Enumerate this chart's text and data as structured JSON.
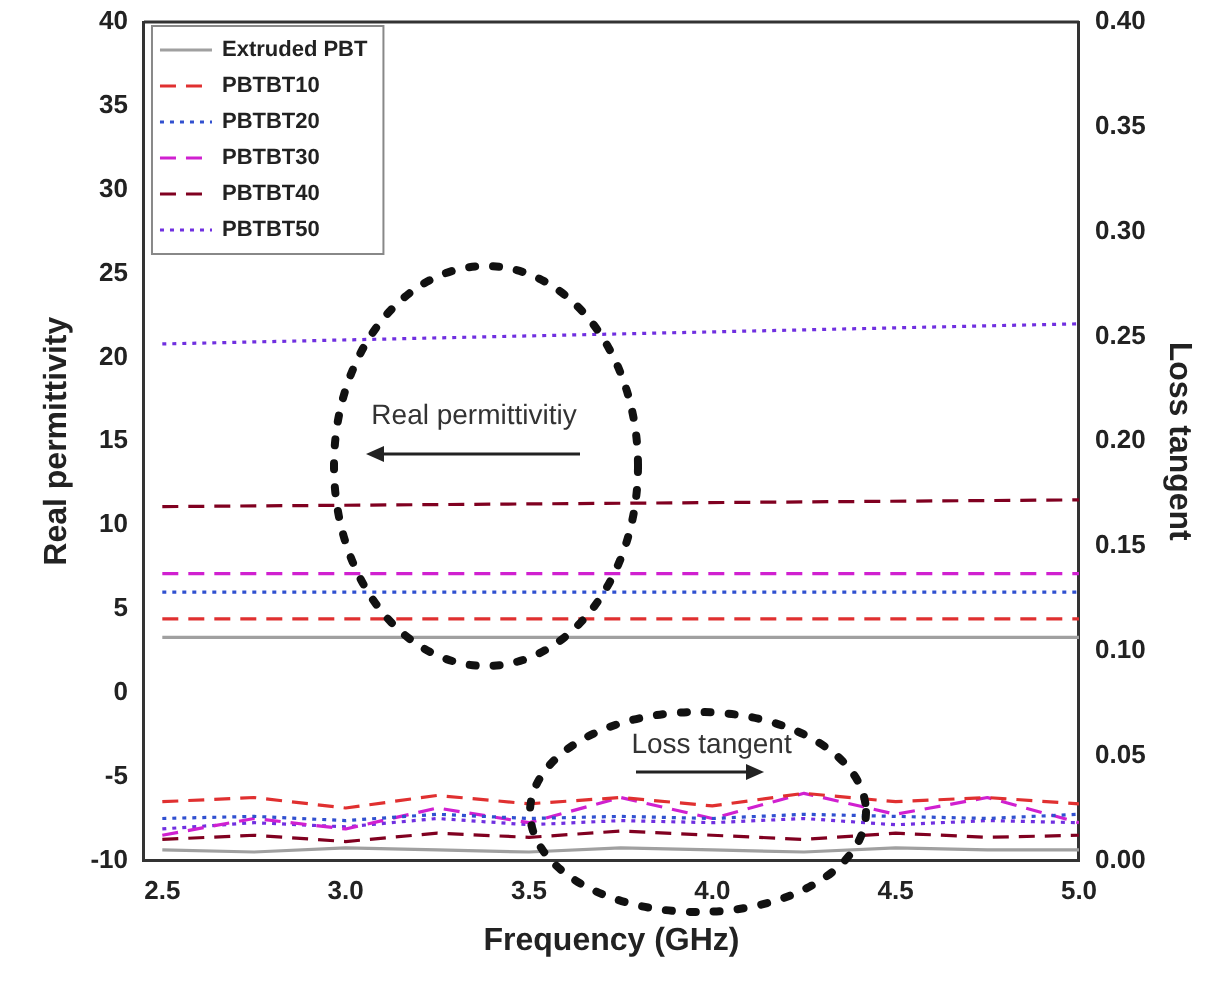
{
  "chart_data": {
    "type": "line",
    "xlabel": "Frequency (GHz)",
    "ylabel": "Real permittivity",
    "y2label": "Loss tangent",
    "xlim": [
      2.45,
      5.0
    ],
    "xticks": [
      2.5,
      {
        "value": 3,
        "label": "3.0"
      },
      3.5,
      {
        "value": 4,
        "label": "4.0"
      },
      4.5,
      {
        "value": 5,
        "label": "5.0"
      }
    ],
    "ylim": [
      -10,
      40
    ],
    "yticks": [
      -10,
      -5,
      0,
      5,
      10,
      15,
      20,
      25,
      30,
      35,
      40
    ],
    "y2lim": [
      0,
      0.4
    ],
    "y2ticks": [
      {
        "value": 0,
        "label": "0.00"
      },
      {
        "value": 0.05,
        "label": "0.05"
      },
      {
        "value": 0.1,
        "label": "0.10"
      },
      {
        "value": 0.15,
        "label": "0.15"
      },
      {
        "value": 0.2,
        "label": "0.20"
      },
      {
        "value": 0.25,
        "label": "0.25"
      },
      {
        "value": 0.3,
        "label": "0.30"
      },
      {
        "value": 0.35,
        "label": "0.35"
      },
      {
        "value": 0.4,
        "label": "0.40"
      }
    ],
    "grid": false,
    "legend": "top left",
    "marker": "none",
    "annotations": [
      "Real permittivitiy",
      "Loss tangent"
    ],
    "series": [
      {
        "name": "Extruded PBT",
        "color": "#a0a0a0",
        "line_style": "solid",
        "x": [
          2.5,
          5.0
        ],
        "values": [
          3.3,
          3.3
        ]
      },
      {
        "name": "PBTBT10",
        "color": "#e03030",
        "line_style": "dashed",
        "x": [
          2.5,
          5.0
        ],
        "values": [
          4.4,
          4.4
        ]
      },
      {
        "name": "PBTBT20",
        "color": "#3050d0",
        "line_style": "dotted",
        "x": [
          2.5,
          5.0
        ],
        "values": [
          6.0,
          6.0
        ]
      },
      {
        "name": "PBTBT30",
        "color": "#d020d0",
        "line_style": "dashed",
        "x": [
          2.5,
          5.0
        ],
        "values": [
          7.1,
          7.1
        ]
      },
      {
        "name": "PBTBT40",
        "color": "#800020",
        "line_style": "dashed",
        "x": [
          2.5,
          5.0
        ],
        "values": [
          11.1,
          11.5
        ]
      },
      {
        "name": "PBTBT50",
        "color": "#7030e0",
        "line_style": "dotted",
        "x": [
          2.5,
          5.0
        ],
        "values": [
          20.8,
          22.0
        ]
      },
      {
        "color": "#a0a0a0",
        "line_style": "solid",
        "axis": "y2",
        "x": [
          2.5,
          2.75,
          3.0,
          3.25,
          3.5,
          3.75,
          4.0,
          4.25,
          4.5,
          4.75,
          5.0
        ],
        "values": [
          0.005,
          0.004,
          0.006,
          0.005,
          0.004,
          0.006,
          0.005,
          0.004,
          0.006,
          0.005,
          0.005
        ]
      },
      {
        "color": "#e03030",
        "line_style": "dashed",
        "axis": "y2",
        "x": [
          2.5,
          2.75,
          3.0,
          3.25,
          3.5,
          3.75,
          4.0,
          4.25,
          4.5,
          4.75,
          5.0
        ],
        "values": [
          0.028,
          0.03,
          0.025,
          0.031,
          0.027,
          0.03,
          0.026,
          0.032,
          0.028,
          0.03,
          0.027
        ]
      },
      {
        "color": "#3050d0",
        "line_style": "dotted",
        "axis": "y2",
        "x": [
          2.5,
          2.75,
          3.0,
          3.25,
          3.5,
          3.75,
          4.0,
          4.25,
          4.5,
          4.75,
          5.0
        ],
        "values": [
          0.02,
          0.021,
          0.019,
          0.022,
          0.02,
          0.021,
          0.02,
          0.022,
          0.021,
          0.02,
          0.022
        ]
      },
      {
        "color": "#d020d0",
        "line_style": "dashed",
        "axis": "y2",
        "x": [
          2.5,
          2.75,
          3.0,
          3.25,
          3.5,
          3.75,
          4.0,
          4.25,
          4.5,
          4.75,
          5.0
        ],
        "values": [
          0.012,
          0.02,
          0.015,
          0.025,
          0.018,
          0.03,
          0.02,
          0.032,
          0.022,
          0.03,
          0.018
        ]
      },
      {
        "color": "#800020",
        "line_style": "dashed",
        "axis": "y2",
        "x": [
          2.5,
          2.75,
          3.0,
          3.25,
          3.5,
          3.75,
          4.0,
          4.25,
          4.5,
          4.75,
          5.0
        ],
        "values": [
          0.01,
          0.012,
          0.009,
          0.013,
          0.011,
          0.014,
          0.012,
          0.01,
          0.013,
          0.011,
          0.012
        ]
      },
      {
        "color": "#7030e0",
        "line_style": "dotted",
        "axis": "y2",
        "x": [
          2.5,
          2.75,
          3.0,
          3.25,
          3.5,
          3.75,
          4.0,
          4.25,
          4.5,
          4.75,
          5.0
        ],
        "values": [
          0.015,
          0.018,
          0.016,
          0.02,
          0.017,
          0.019,
          0.018,
          0.02,
          0.017,
          0.019,
          0.018
        ]
      }
    ]
  }
}
